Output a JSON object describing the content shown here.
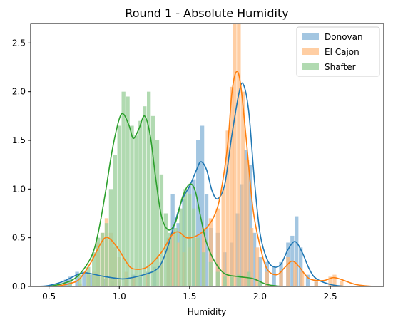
{
  "chart_data": {
    "type": "histogram+kde",
    "title": "Round 1 - Absolute Humidity",
    "xlabel": "Humidity",
    "ylabel": "",
    "xlim": [
      0.37,
      2.88
    ],
    "ylim": [
      0,
      2.7
    ],
    "xticks": [
      0.5,
      1.0,
      1.5,
      2.0,
      2.5
    ],
    "yticks": [
      0.0,
      0.5,
      1.0,
      1.5,
      2.0,
      2.5
    ],
    "xtick_labels": [
      "0.5",
      "1.0",
      "1.5",
      "2.0",
      "2.5"
    ],
    "ytick_labels": [
      "0.0",
      "0.5",
      "1.0",
      "1.5",
      "2.0",
      "2.5"
    ],
    "grid": false,
    "legend_position": "upper right",
    "bar_width": 0.027,
    "series": [
      {
        "name": "Donovan",
        "color": "#1f77b4",
        "bar_color": "#7fb0d6",
        "bar_opacity": 0.72,
        "bars": [
          [
            0.62,
            0.07
          ],
          [
            0.65,
            0.1
          ],
          [
            0.7,
            0.15
          ],
          [
            0.75,
            0.15
          ],
          [
            0.8,
            0.12
          ],
          [
            0.85,
            0.1
          ],
          [
            0.9,
            0.08
          ],
          [
            0.95,
            0.05
          ],
          [
            1.0,
            0.06
          ],
          [
            1.05,
            0.08
          ],
          [
            1.1,
            0.12
          ],
          [
            1.15,
            0.1
          ],
          [
            1.2,
            0.15
          ],
          [
            1.25,
            0.2
          ],
          [
            1.3,
            0.25
          ],
          [
            1.35,
            0.5
          ],
          [
            1.38,
            0.95
          ],
          [
            1.42,
            0.65
          ],
          [
            1.46,
            0.9
          ],
          [
            1.5,
            1.05
          ],
          [
            1.53,
            1.1
          ],
          [
            1.56,
            1.5
          ],
          [
            1.59,
            1.65
          ],
          [
            1.62,
            0.95
          ],
          [
            1.65,
            0.6
          ],
          [
            1.7,
            0.55
          ],
          [
            1.75,
            0.35
          ],
          [
            1.8,
            0.45
          ],
          [
            1.84,
            0.75
          ],
          [
            1.87,
            1.05
          ],
          [
            1.9,
            1.4
          ],
          [
            1.93,
            1.25
          ],
          [
            1.96,
            0.55
          ],
          [
            2.0,
            0.3
          ],
          [
            2.05,
            0.25
          ],
          [
            2.1,
            0.2
          ],
          [
            2.15,
            0.25
          ],
          [
            2.2,
            0.45
          ],
          [
            2.23,
            0.52
          ],
          [
            2.26,
            0.72
          ],
          [
            2.29,
            0.4
          ],
          [
            2.34,
            0.12
          ],
          [
            2.4,
            0.05
          ]
        ],
        "kde": [
          [
            0.42,
            0.0
          ],
          [
            0.5,
            0.01
          ],
          [
            0.6,
            0.05
          ],
          [
            0.7,
            0.12
          ],
          [
            0.75,
            0.14
          ],
          [
            0.8,
            0.13
          ],
          [
            0.9,
            0.1
          ],
          [
            1.0,
            0.08
          ],
          [
            1.05,
            0.08
          ],
          [
            1.15,
            0.11
          ],
          [
            1.25,
            0.16
          ],
          [
            1.3,
            0.24
          ],
          [
            1.35,
            0.43
          ],
          [
            1.4,
            0.68
          ],
          [
            1.45,
            0.9
          ],
          [
            1.5,
            1.03
          ],
          [
            1.55,
            1.2
          ],
          [
            1.58,
            1.28
          ],
          [
            1.62,
            1.2
          ],
          [
            1.66,
            0.98
          ],
          [
            1.7,
            0.9
          ],
          [
            1.75,
            1.05
          ],
          [
            1.8,
            1.55
          ],
          [
            1.85,
            1.98
          ],
          [
            1.88,
            2.08
          ],
          [
            1.92,
            1.8
          ],
          [
            1.96,
            1.1
          ],
          [
            2.0,
            0.55
          ],
          [
            2.05,
            0.28
          ],
          [
            2.1,
            0.2
          ],
          [
            2.15,
            0.23
          ],
          [
            2.2,
            0.38
          ],
          [
            2.25,
            0.46
          ],
          [
            2.3,
            0.35
          ],
          [
            2.35,
            0.18
          ],
          [
            2.4,
            0.08
          ],
          [
            2.5,
            0.02
          ],
          [
            2.6,
            0.0
          ]
        ]
      },
      {
        "name": "El Cajon",
        "color": "#ff7f0e",
        "bar_color": "#ffbb7f",
        "bar_opacity": 0.72,
        "bars": [
          [
            0.72,
            0.03
          ],
          [
            0.78,
            0.12
          ],
          [
            0.82,
            0.15
          ],
          [
            0.85,
            0.45
          ],
          [
            0.88,
            0.55
          ],
          [
            0.91,
            0.7
          ],
          [
            0.94,
            0.55
          ],
          [
            0.97,
            0.4
          ],
          [
            1.0,
            0.3
          ],
          [
            1.05,
            0.15
          ],
          [
            1.1,
            0.1
          ],
          [
            1.2,
            0.12
          ],
          [
            1.3,
            0.25
          ],
          [
            1.35,
            0.45
          ],
          [
            1.38,
            0.55
          ],
          [
            1.42,
            0.45
          ],
          [
            1.46,
            0.35
          ],
          [
            1.5,
            0.4
          ],
          [
            1.55,
            0.5
          ],
          [
            1.6,
            0.6
          ],
          [
            1.65,
            0.7
          ],
          [
            1.7,
            0.8
          ],
          [
            1.74,
            1.0
          ],
          [
            1.77,
            1.6
          ],
          [
            1.8,
            2.05
          ],
          [
            1.82,
            2.7
          ],
          [
            1.85,
            2.7
          ],
          [
            1.88,
            2.0
          ],
          [
            1.91,
            1.3
          ],
          [
            1.94,
            0.6
          ],
          [
            1.98,
            0.4
          ],
          [
            2.05,
            0.15
          ],
          [
            2.15,
            0.15
          ],
          [
            2.2,
            0.3
          ],
          [
            2.25,
            0.25
          ],
          [
            2.3,
            0.15
          ],
          [
            2.4,
            0.05
          ],
          [
            2.5,
            0.1
          ],
          [
            2.53,
            0.12
          ],
          [
            2.58,
            0.06
          ]
        ],
        "kde": [
          [
            0.55,
            0.0
          ],
          [
            0.65,
            0.03
          ],
          [
            0.72,
            0.08
          ],
          [
            0.8,
            0.25
          ],
          [
            0.86,
            0.42
          ],
          [
            0.9,
            0.5
          ],
          [
            0.94,
            0.48
          ],
          [
            1.0,
            0.37
          ],
          [
            1.05,
            0.25
          ],
          [
            1.1,
            0.18
          ],
          [
            1.2,
            0.2
          ],
          [
            1.3,
            0.35
          ],
          [
            1.37,
            0.52
          ],
          [
            1.42,
            0.56
          ],
          [
            1.48,
            0.5
          ],
          [
            1.55,
            0.52
          ],
          [
            1.62,
            0.6
          ],
          [
            1.68,
            0.74
          ],
          [
            1.72,
            0.95
          ],
          [
            1.77,
            1.45
          ],
          [
            1.8,
            1.98
          ],
          [
            1.83,
            2.2
          ],
          [
            1.86,
            2.1
          ],
          [
            1.9,
            1.55
          ],
          [
            1.95,
            0.8
          ],
          [
            2.0,
            0.42
          ],
          [
            2.05,
            0.18
          ],
          [
            2.12,
            0.12
          ],
          [
            2.18,
            0.2
          ],
          [
            2.23,
            0.26
          ],
          [
            2.28,
            0.2
          ],
          [
            2.35,
            0.08
          ],
          [
            2.45,
            0.06
          ],
          [
            2.52,
            0.09
          ],
          [
            2.58,
            0.07
          ],
          [
            2.68,
            0.02
          ],
          [
            2.8,
            0.0
          ]
        ]
      },
      {
        "name": "Shafter",
        "color": "#2ca02c",
        "bar_color": "#9dd19d",
        "bar_opacity": 0.8,
        "bars": [
          [
            0.58,
            0.02
          ],
          [
            0.65,
            0.05
          ],
          [
            0.72,
            0.12
          ],
          [
            0.78,
            0.2
          ],
          [
            0.82,
            0.35
          ],
          [
            0.85,
            0.5
          ],
          [
            0.88,
            0.55
          ],
          [
            0.91,
            0.65
          ],
          [
            0.94,
            1.0
          ],
          [
            0.97,
            1.35
          ],
          [
            1.0,
            1.65
          ],
          [
            1.03,
            2.0
          ],
          [
            1.06,
            1.95
          ],
          [
            1.09,
            1.65
          ],
          [
            1.12,
            1.55
          ],
          [
            1.15,
            1.7
          ],
          [
            1.18,
            1.85
          ],
          [
            1.21,
            2.0
          ],
          [
            1.24,
            1.75
          ],
          [
            1.27,
            1.5
          ],
          [
            1.3,
            1.15
          ],
          [
            1.33,
            0.75
          ],
          [
            1.36,
            0.55
          ],
          [
            1.4,
            0.6
          ],
          [
            1.44,
            0.8
          ],
          [
            1.47,
            1.0
          ],
          [
            1.5,
            0.95
          ],
          [
            1.53,
            0.8
          ],
          [
            1.56,
            0.5
          ],
          [
            1.6,
            0.35
          ],
          [
            1.65,
            0.25
          ],
          [
            1.7,
            0.15
          ],
          [
            1.75,
            0.1
          ],
          [
            1.8,
            0.1
          ],
          [
            1.85,
            0.12
          ],
          [
            1.92,
            0.15
          ],
          [
            2.0,
            0.05
          ]
        ],
        "kde": [
          [
            0.5,
            0.0
          ],
          [
            0.6,
            0.03
          ],
          [
            0.7,
            0.1
          ],
          [
            0.8,
            0.3
          ],
          [
            0.85,
            0.55
          ],
          [
            0.9,
            0.95
          ],
          [
            0.95,
            1.4
          ],
          [
            1.0,
            1.72
          ],
          [
            1.03,
            1.77
          ],
          [
            1.07,
            1.65
          ],
          [
            1.1,
            1.52
          ],
          [
            1.14,
            1.62
          ],
          [
            1.18,
            1.75
          ],
          [
            1.22,
            1.55
          ],
          [
            1.26,
            1.1
          ],
          [
            1.3,
            0.72
          ],
          [
            1.35,
            0.58
          ],
          [
            1.4,
            0.66
          ],
          [
            1.45,
            0.92
          ],
          [
            1.5,
            1.05
          ],
          [
            1.54,
            0.98
          ],
          [
            1.58,
            0.7
          ],
          [
            1.62,
            0.45
          ],
          [
            1.68,
            0.25
          ],
          [
            1.75,
            0.13
          ],
          [
            1.85,
            0.1
          ],
          [
            1.95,
            0.08
          ],
          [
            2.05,
            0.02
          ],
          [
            2.15,
            0.0
          ]
        ]
      }
    ]
  }
}
